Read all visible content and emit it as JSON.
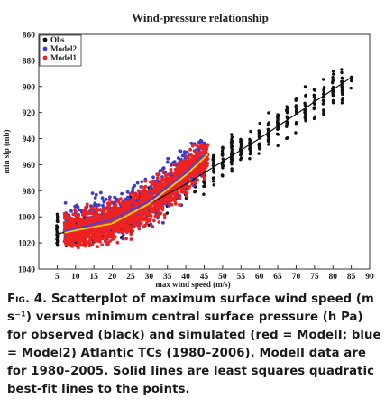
{
  "chart_data": {
    "type": "scatter",
    "title": "Wind-pressure relationship",
    "xlabel": "max wind speed (m/s)",
    "ylabel": "min slp (mb)",
    "xlim": [
      0,
      90
    ],
    "ylim": [
      1040,
      860
    ],
    "x_ticks": [
      5,
      10,
      15,
      20,
      25,
      30,
      35,
      40,
      45,
      50,
      55,
      60,
      65,
      70,
      75,
      80,
      85,
      90
    ],
    "y_ticks": [
      860,
      880,
      900,
      920,
      940,
      960,
      980,
      1000,
      1020,
      1040
    ],
    "legend": [
      "Obs",
      "Model2",
      "Model1"
    ],
    "legend_position": "top-left",
    "grid": false,
    "series": [
      {
        "name": "Obs",
        "color": "#111111",
        "marker": "dot",
        "x_range": [
          5,
          85
        ],
        "y_range": [
          1023,
          877
        ]
      },
      {
        "name": "Model2",
        "color": "#3b3bcc",
        "marker": "dot",
        "x_range": [
          7,
          45
        ],
        "y_range": [
          1020,
          943
        ]
      },
      {
        "name": "Model1",
        "color": "#ee2222",
        "marker": "dot",
        "x_range": [
          7,
          46
        ],
        "y_range": [
          1024,
          948
        ]
      }
    ],
    "fits": [
      {
        "series": "Obs",
        "color": "#111111",
        "points": [
          [
            5,
            1013
          ],
          [
            20,
            1005
          ],
          [
            40,
            975
          ],
          [
            60,
            940
          ],
          [
            85,
            893
          ]
        ]
      },
      {
        "series": "Model1",
        "color": "#f4d000",
        "points": [
          [
            7,
            1012
          ],
          [
            20,
            1005
          ],
          [
            30,
            990
          ],
          [
            40,
            968
          ],
          [
            46,
            952
          ]
        ]
      },
      {
        "series": "Model2",
        "color": "#4444dd",
        "points": [
          [
            7,
            1011
          ],
          [
            20,
            1002
          ],
          [
            30,
            988
          ],
          [
            40,
            966
          ],
          [
            45,
            952
          ]
        ]
      }
    ]
  },
  "caption": {
    "fig_label": "Fig. 4.",
    "text": "Scatterplot of maximum surface wind speed (m s⁻¹) versus minimum central surface pressure (h Pa) for observed (black) and simulated (red = ModelI; blue = Model2) Atlantic TCs (1980–2006). ModelI data are for 1980–2005. Solid lines are least squares quadratic best-fit lines to the points."
  }
}
